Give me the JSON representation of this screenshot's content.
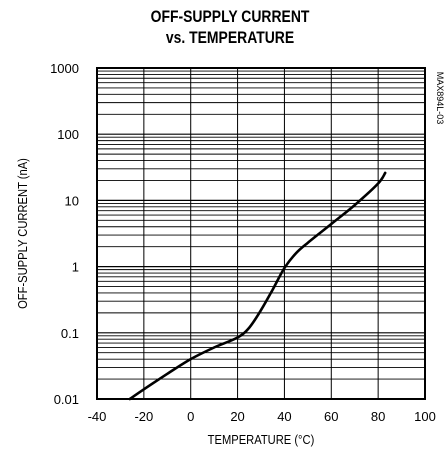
{
  "chart_data": {
    "type": "line",
    "title_lines": [
      "OFF-SUPPLY CURRENT",
      "vs. TEMPERATURE"
    ],
    "xlabel": "TEMPERATURE (°C)",
    "ylabel": "OFF-SUPPLY CURRENT (nA)",
    "xlim": [
      -40,
      100
    ],
    "ylim": [
      0.01,
      1000
    ],
    "yscale": "log",
    "x_ticks": [
      "-40",
      "-20",
      "0",
      "20",
      "40",
      "60",
      "80",
      "100"
    ],
    "y_ticks": [
      "0.01",
      "0.1",
      "1",
      "10",
      "100",
      "1000"
    ],
    "grid": true,
    "annotation": "MAX894L-03",
    "series": [
      {
        "x": [
          -26,
          -20,
          -10,
          0,
          10,
          20,
          25,
          30,
          35,
          40,
          45,
          50,
          60,
          70,
          80,
          83
        ],
        "y": [
          0.01,
          0.014,
          0.024,
          0.04,
          0.06,
          0.085,
          0.12,
          0.22,
          0.45,
          0.95,
          1.6,
          2.3,
          4.4,
          8.5,
          18,
          26
        ]
      }
    ]
  }
}
